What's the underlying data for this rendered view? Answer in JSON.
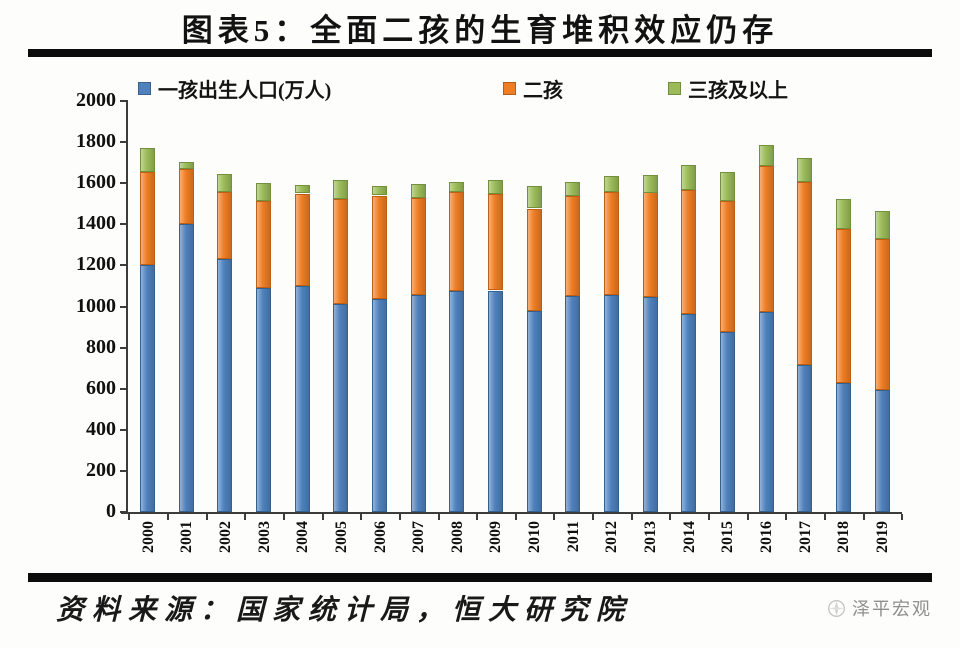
{
  "title": "图表5：全面二孩的生育堆积效应仍存",
  "footer": {
    "source_label": "资料来源：国家统计局，恒大研究院",
    "brand": "泽平宏观"
  },
  "colors": {
    "first_child": "#4f81bd",
    "first_child_border": "#35618f",
    "second_child": "#ef7d23",
    "second_child_border": "#c05e12",
    "third_child": "#9bbb59",
    "third_child_border": "#73903e",
    "axis": "#3c3c3c"
  },
  "chart_data": {
    "type": "bar",
    "stacked": true,
    "grid": false,
    "legend_position": "top",
    "unit": "万人",
    "categories": [
      "2000",
      "2001",
      "2002",
      "2003",
      "2004",
      "2005",
      "2006",
      "2007",
      "2008",
      "2009",
      "2010",
      "2011",
      "2012",
      "2013",
      "2014",
      "2015",
      "2016",
      "2017",
      "2018",
      "2019"
    ],
    "series": [
      {
        "name": "一孩出生人口(万人)",
        "color": "#4f81bd",
        "border": "#35618f",
        "values": [
          1200,
          1400,
          1231,
          1090,
          1100,
          1013,
          1035,
          1057,
          1074,
          1078,
          980,
          1053,
          1057,
          1045,
          964,
          875,
          975,
          715,
          628,
          592
        ]
      },
      {
        "name": "二孩",
        "color": "#ef7d23",
        "border": "#c05e12",
        "values": [
          455,
          268,
          327,
          424,
          450,
          510,
          505,
          470,
          481,
          469,
          497,
          486,
          501,
          510,
          602,
          640,
          710,
          890,
          750,
          738
        ]
      },
      {
        "name": "三孩及以上",
        "color": "#9bbb59",
        "border": "#73903e",
        "values": [
          116,
          34,
          89,
          85,
          43,
          94,
          45,
          67,
          53,
          68,
          111,
          65,
          77,
          85,
          121,
          140,
          101,
          118,
          145,
          136
        ]
      }
    ],
    "totals": [
      1771,
      1702,
      1647,
      1599,
      1593,
      1617,
      1585,
      1594,
      1608,
      1615,
      1588,
      1604,
      1635,
      1640,
      1687,
      1655,
      1786,
      1723,
      1523,
      1466
    ],
    "ylim": [
      0,
      2000
    ],
    "ytick_step": 200,
    "xlabel": "",
    "ylabel": ""
  }
}
